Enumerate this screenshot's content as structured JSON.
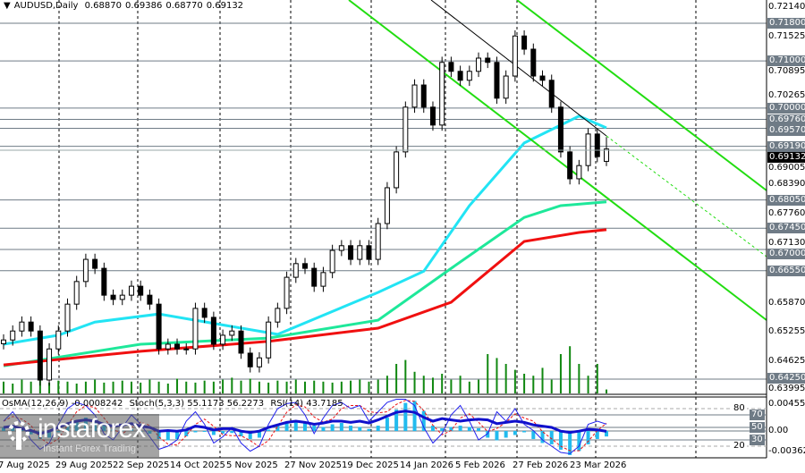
{
  "header": {
    "symbol": "AUDUSD,Daily",
    "open": "0.68870",
    "high": "0.69386",
    "low": "0.68770",
    "close": "0.69132"
  },
  "indicators_header": {
    "osma": "OsMA(12,26,9) -0.0008242",
    "stoch": "Stoch(5,3,3) 55.1173 56.2273",
    "rsi": "RSI(14) 43.7185"
  },
  "watermark": {
    "logo": "instaforex",
    "tagline": "Instant Forex Trading"
  },
  "price_axis_ticks": [
    "0.72140",
    "0.71525",
    "0.70895",
    "0.70265",
    "0.69005",
    "0.68390",
    "0.67760",
    "0.67130",
    "0.65870",
    "0.65255",
    "0.64625",
    "0.63995"
  ],
  "levels": [
    "0.71800",
    "0.71000",
    "0.70000",
    "0.69760",
    "0.69570",
    "0.69190",
    "0.68050",
    "0.67450",
    "0.67000",
    "0.66550",
    "0.64250"
  ],
  "current_price": "0.69132",
  "indicator_axis": {
    "top": "0.004552",
    "zero": "0.00",
    "bottom": "-0.003621",
    "levels": [
      "80",
      "70",
      "50",
      "30",
      "20"
    ]
  },
  "colors": {
    "ma_fast": "#22e4f4",
    "ma_mid": "#1ee89a",
    "ma_slow": "#f01010",
    "channel": "#22dd11",
    "volume": "#118811",
    "osma": "#22bbee",
    "rsi": "#1010cc",
    "stoch_main": "#2222ee",
    "stoch_signal": "#ee1111",
    "level": "#6f7b86"
  },
  "chart_data": {
    "type": "candlestick",
    "title": "AUDUSD,Daily",
    "x_tick_labels": [
      "7 Aug 2025",
      "29 Aug 2025",
      "22 Sep 2025",
      "14 Oct 2025",
      "5 Nov 2025",
      "27 Nov 2025",
      "19 Dec 2025",
      "14 Jan 2026",
      "5 Feb 2026",
      "27 Feb 2026",
      "23 Mar 2026"
    ],
    "ylim": [
      0.63995,
      0.7214
    ],
    "grid": "vertical dashed",
    "closes": [
      0.6508,
      0.6527,
      0.6546,
      0.6527,
      0.6423,
      0.6489,
      0.6527,
      0.6584,
      0.6632,
      0.6679,
      0.666,
      0.6603,
      0.6594,
      0.6603,
      0.6622,
      0.6603,
      0.6584,
      0.6489,
      0.6499,
      0.6489,
      0.6489,
      0.6575,
      0.6556,
      0.6499,
      0.6518,
      0.6527,
      0.648,
      0.6451,
      0.647,
      0.6546,
      0.6575,
      0.6641,
      0.667,
      0.666,
      0.6622,
      0.6651,
      0.6698,
      0.6708,
      0.6679,
      0.6708,
      0.6679,
      0.6755,
      0.6831,
      0.6907,
      0.7002,
      0.7049,
      0.7002,
      0.6964,
      0.7097,
      0.7078,
      0.7059,
      0.7078,
      0.7106,
      0.7097,
      0.7021,
      0.7068,
      0.7153,
      0.7125,
      0.7068,
      0.7059,
      0.7002,
      0.6907,
      0.685,
      0.6878,
      0.6945,
      0.6897,
      0.6913
    ],
    "last_bar": {
      "open": 0.6887,
      "high": 0.69386,
      "low": 0.6877,
      "close": 0.69132
    },
    "moving_averages": [
      {
        "color": "#22e4f4",
        "points": [
          [
            0,
            0.6499
          ],
          [
            6,
            0.6518
          ],
          [
            10,
            0.6546
          ],
          [
            17,
            0.6563
          ],
          [
            30,
            0.652
          ],
          [
            41,
            0.6609
          ],
          [
            46,
            0.6654
          ],
          [
            51,
            0.6793
          ],
          [
            57,
            0.6926
          ],
          [
            61,
            0.6964
          ],
          [
            63,
            0.6983
          ],
          [
            66,
            0.6958
          ]
        ]
      },
      {
        "color": "#1ee89a",
        "points": [
          [
            0,
            0.6453
          ],
          [
            15,
            0.6499
          ],
          [
            29,
            0.6512
          ],
          [
            41,
            0.655
          ],
          [
            49,
            0.666
          ],
          [
            57,
            0.6768
          ],
          [
            61,
            0.6793
          ],
          [
            66,
            0.6801
          ]
        ]
      },
      {
        "color": "#f01010",
        "points": [
          [
            0,
            0.6455
          ],
          [
            15,
            0.6484
          ],
          [
            29,
            0.6505
          ],
          [
            41,
            0.6533
          ],
          [
            49,
            0.6588
          ],
          [
            57,
            0.6717
          ],
          [
            63,
            0.6736
          ],
          [
            66,
            0.6742
          ]
        ]
      }
    ],
    "volume": [
      12,
      10,
      14,
      12,
      16,
      11,
      13,
      12,
      10,
      12,
      14,
      11,
      12,
      13,
      12,
      11,
      14,
      12,
      10,
      15,
      12,
      11,
      13,
      12,
      14,
      16,
      13,
      15,
      12,
      11,
      13,
      12,
      14,
      12,
      13,
      12,
      11,
      12,
      13,
      14,
      12,
      14,
      18,
      30,
      34,
      22,
      18,
      16,
      20,
      14,
      18,
      12,
      14,
      40,
      36,
      30,
      24,
      20,
      18,
      26,
      14,
      40,
      48,
      30,
      18,
      30,
      4
    ],
    "rsi": [
      50,
      52,
      48,
      45,
      40,
      44,
      50,
      56,
      60,
      62,
      60,
      55,
      52,
      54,
      56,
      52,
      50,
      44,
      45,
      44,
      46,
      52,
      50,
      46,
      48,
      48,
      44,
      42,
      44,
      50,
      54,
      58,
      60,
      58,
      55,
      57,
      60,
      60,
      58,
      60,
      57,
      62,
      68,
      74,
      76,
      74,
      66,
      60,
      64,
      62,
      60,
      62,
      63,
      62,
      56,
      58,
      60,
      58,
      54,
      52,
      50,
      44,
      42,
      44,
      47,
      46,
      43.7
    ],
    "stoch": [
      60,
      75,
      55,
      30,
      15,
      25,
      55,
      80,
      90,
      85,
      70,
      40,
      30,
      50,
      70,
      55,
      35,
      15,
      20,
      30,
      60,
      75,
      55,
      25,
      35,
      50,
      25,
      12,
      20,
      55,
      80,
      88,
      90,
      70,
      40,
      65,
      85,
      90,
      80,
      85,
      60,
      75,
      90,
      95,
      95,
      85,
      50,
      25,
      40,
      70,
      85,
      60,
      30,
      40,
      75,
      60,
      80,
      55,
      45,
      30,
      20,
      10,
      8,
      20,
      55,
      60,
      55.1
    ],
    "osma": [
      0.0005,
      0.0006,
      0.0003,
      -0.0005,
      -0.0012,
      -0.001,
      -0.0002,
      0.0008,
      0.0015,
      0.002,
      0.0018,
      0.001,
      0.0004,
      0.0002,
      0.0003,
      0,
      -0.0004,
      -0.0012,
      -0.0014,
      -0.0012,
      -0.0008,
      -0.0002,
      -0.0001,
      -0.0006,
      -0.0004,
      -0.0003,
      -0.0008,
      -0.0012,
      -0.001,
      0.0002,
      0.0008,
      0.0014,
      0.0016,
      0.0013,
      0.0008,
      0.0006,
      0.001,
      0.0012,
      0.0008,
      0.0006,
      0.0003,
      0.0008,
      0.002,
      0.0032,
      0.0042,
      0.0045,
      0.003,
      0.0008,
      0.0004,
      0.0006,
      0.0008,
      0.0006,
      0.0004,
      -0.001,
      -0.0014,
      -0.001,
      -0.0006,
      -0.0002,
      -0.0012,
      -0.0018,
      -0.002,
      -0.0028,
      -0.0036,
      -0.003,
      -0.002,
      -0.0012,
      -0.0008242
    ]
  }
}
